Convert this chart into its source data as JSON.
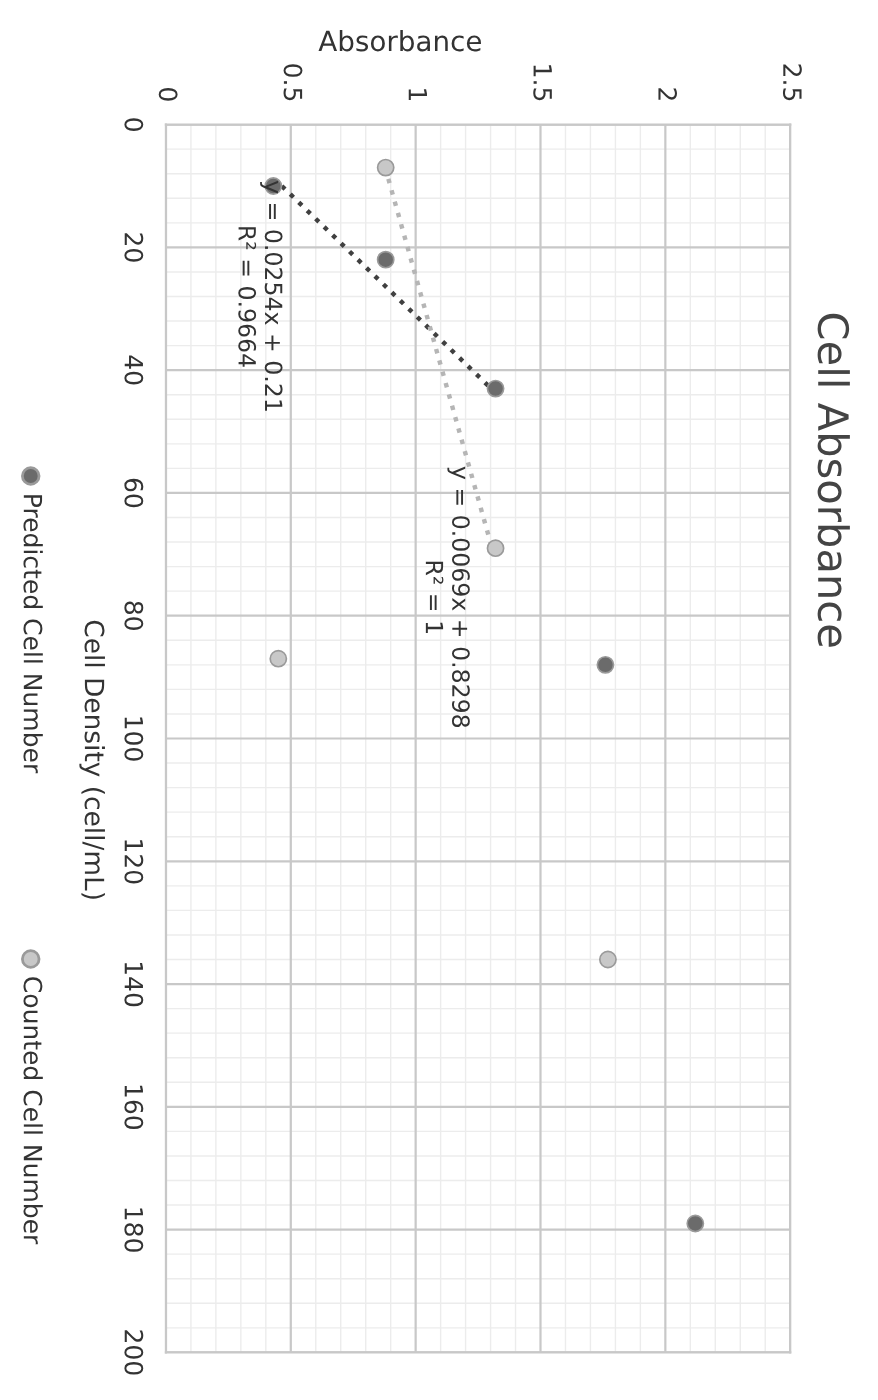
{
  "chart_data": {
    "type": "scatter",
    "title": "Cell Absorbance",
    "xlabel": "Absorbance",
    "ylabel": "Cell Density (cell/mL)",
    "xlim": [
      0,
      2.5
    ],
    "xticks": [
      0,
      0.5,
      1,
      1.5,
      2,
      2.5
    ],
    "ylim": [
      200,
      0
    ],
    "yticks": [
      0,
      20,
      40,
      60,
      80,
      100,
      120,
      140,
      160,
      180,
      200
    ],
    "grid": true,
    "legend": "left",
    "marker": "circle",
    "series": [
      {
        "name": "Predicted Cell Number",
        "color": "#6b6b6b",
        "x": [
          0.43,
          0.88,
          1.32,
          1.76,
          2.12
        ],
        "values": [
          10,
          22,
          43,
          88,
          179
        ]
      },
      {
        "name": "Counted Cell Number",
        "color": "#c8c8c8",
        "x": [
          0.88,
          1.32,
          0.45,
          1.77
        ],
        "values": [
          7,
          69,
          87,
          136
        ]
      },
      {
        "type": "line",
        "color": "#404040",
        "line_style": "dotted",
        "marker": "none",
        "x": [
          0.464,
          1.328
        ],
        "values": [
          10,
          44
        ]
      },
      {
        "type": "line",
        "color": "#b5b5b5",
        "line_style": "dotted",
        "marker": "none",
        "x": [
          0.878,
          1.306
        ],
        "values": [
          7,
          69
        ]
      }
    ],
    "annotations": [
      "y = 0.0254x + 0.21\nR² = 0.9664",
      "y = 0.0069x + 0.8298\nR² = 1"
    ]
  }
}
